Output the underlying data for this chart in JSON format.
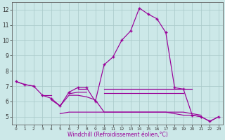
{
  "xlabel": "Windchill (Refroidissement éolien,°C)",
  "xlim": [
    -0.5,
    23.5
  ],
  "ylim": [
    4.5,
    12.5
  ],
  "xticks": [
    0,
    1,
    2,
    3,
    4,
    5,
    6,
    7,
    8,
    9,
    10,
    11,
    12,
    13,
    14,
    15,
    16,
    17,
    18,
    19,
    20,
    21,
    22,
    23
  ],
  "yticks": [
    5,
    6,
    7,
    8,
    9,
    10,
    11,
    12
  ],
  "bg_color": "#cce8e8",
  "grid_color": "#a8c8c8",
  "line_color": "#990099",
  "series": {
    "main": [
      7.3,
      7.1,
      7.0,
      6.4,
      6.2,
      5.7,
      6.6,
      6.9,
      6.9,
      6.0,
      8.4,
      8.9,
      10.0,
      10.6,
      12.1,
      11.7,
      11.4,
      10.5,
      6.9,
      6.8,
      5.1,
      5.0,
      4.7,
      5.0
    ],
    "upper": [
      7.3,
      7.1,
      7.0,
      null,
      null,
      null,
      null,
      6.8,
      6.8,
      null,
      6.8,
      6.8,
      6.8,
      6.8,
      6.8,
      6.8,
      6.8,
      6.8,
      6.8,
      6.8,
      6.8,
      null,
      null,
      null
    ],
    "mid_upper": [
      null,
      null,
      null,
      6.4,
      6.4,
      null,
      6.5,
      6.6,
      6.6,
      null,
      6.55,
      6.55,
      6.55,
      6.55,
      6.55,
      6.55,
      6.55,
      6.55,
      6.55,
      6.55,
      null,
      null,
      null,
      null
    ],
    "mid_lower": [
      null,
      null,
      null,
      null,
      6.1,
      5.7,
      6.4,
      6.4,
      6.3,
      6.1,
      5.3,
      5.3,
      5.3,
      5.3,
      5.3,
      5.3,
      5.3,
      5.3,
      5.3,
      5.3,
      5.2,
      5.1,
      null,
      null
    ],
    "lower": [
      null,
      null,
      null,
      null,
      null,
      5.2,
      5.3,
      5.3,
      5.3,
      5.3,
      5.3,
      5.3,
      5.3,
      5.3,
      5.3,
      5.3,
      5.3,
      5.3,
      5.2,
      5.1,
      5.1,
      5.0,
      4.7,
      5.0
    ]
  }
}
